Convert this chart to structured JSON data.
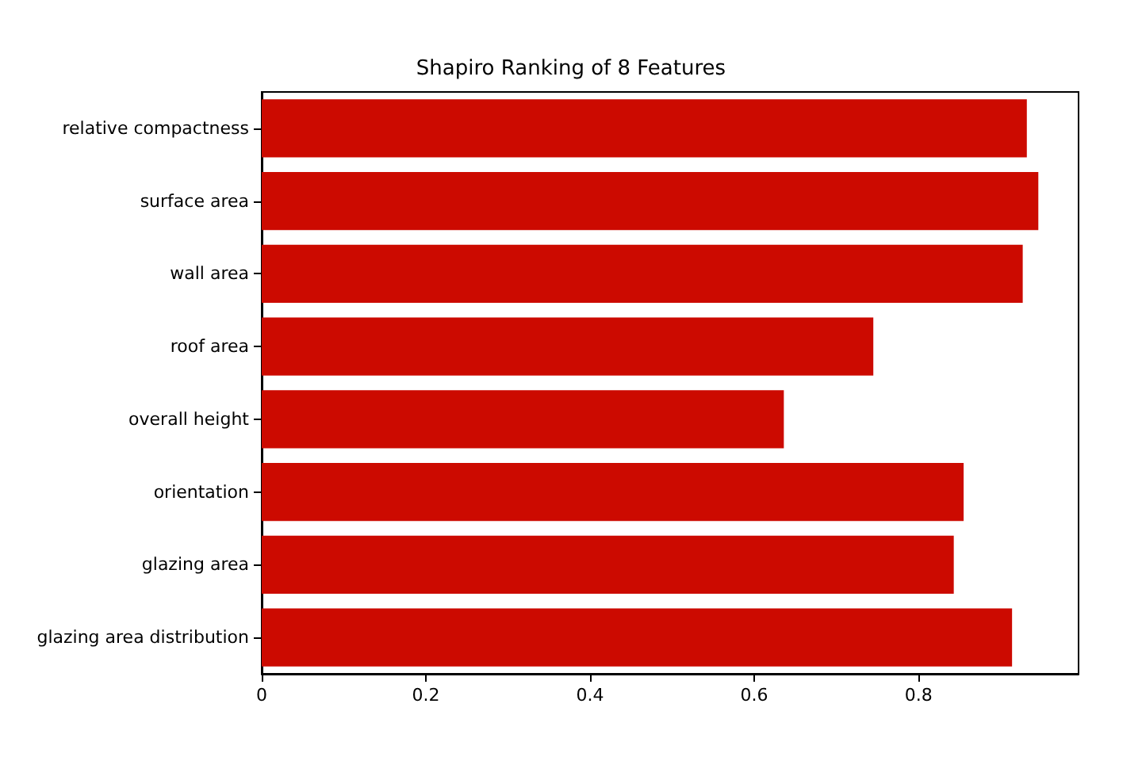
{
  "chart_data": {
    "type": "bar",
    "orientation": "horizontal",
    "title": "Shapiro Ranking of 8 Features",
    "categories": [
      "relative compactness",
      "surface area",
      "wall area",
      "roof area",
      "overall height",
      "orientation",
      "glazing area",
      "glazing area distribution"
    ],
    "values": [
      0.932,
      0.946,
      0.927,
      0.745,
      0.636,
      0.855,
      0.843,
      0.914
    ],
    "color": "#cc0a00",
    "xlim": [
      0,
      0.995
    ],
    "xticks": [
      0,
      0.2,
      0.4,
      0.6,
      0.8
    ]
  }
}
